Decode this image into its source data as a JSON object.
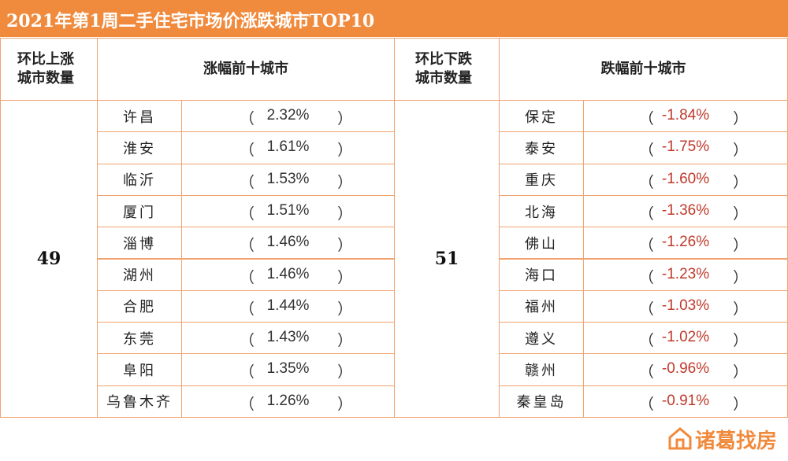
{
  "header": {
    "title": "2021年第1周二手住宅市场价涨跌城市TOP10"
  },
  "table": {
    "headers": [
      "环比上涨城市数量",
      "涨幅前十城市",
      "环比下跌城市数量",
      "跌幅前十城市"
    ],
    "rise_count": 49,
    "fall_count": 51,
    "paren": [
      "（",
      "）"
    ],
    "rise": [
      {
        "city": "许昌",
        "value": "2.32%"
      },
      {
        "city": "淮安",
        "value": "1.61%"
      },
      {
        "city": "临沂",
        "value": "1.53%"
      },
      {
        "city": "厦门",
        "value": "1.51%"
      },
      {
        "city": "淄博",
        "value": "1.46%"
      },
      {
        "city": "湖州",
        "value": "1.46%"
      },
      {
        "city": "合肥",
        "value": "1.44%"
      },
      {
        "city": "东莞",
        "value": "1.43%"
      },
      {
        "city": "阜阳",
        "value": "1.35%"
      },
      {
        "city": "乌鲁木齐",
        "value": "1.26%"
      }
    ],
    "fall": [
      {
        "city": "保定",
        "value": "-1.84%"
      },
      {
        "city": "泰安",
        "value": "-1.75%"
      },
      {
        "city": "重庆",
        "value": "-1.60%"
      },
      {
        "city": "北海",
        "value": "-1.36%"
      },
      {
        "city": "佛山",
        "value": "-1.26%"
      },
      {
        "city": "海口",
        "value": "-1.23%"
      },
      {
        "city": "福州",
        "value": "-1.03%"
      },
      {
        "city": "遵义",
        "value": "-1.02%"
      },
      {
        "city": "赣州",
        "value": "-0.96%"
      },
      {
        "city": "秦皇岛",
        "value": "-0.91%"
      }
    ]
  },
  "watermark": "诸葛找房"
}
